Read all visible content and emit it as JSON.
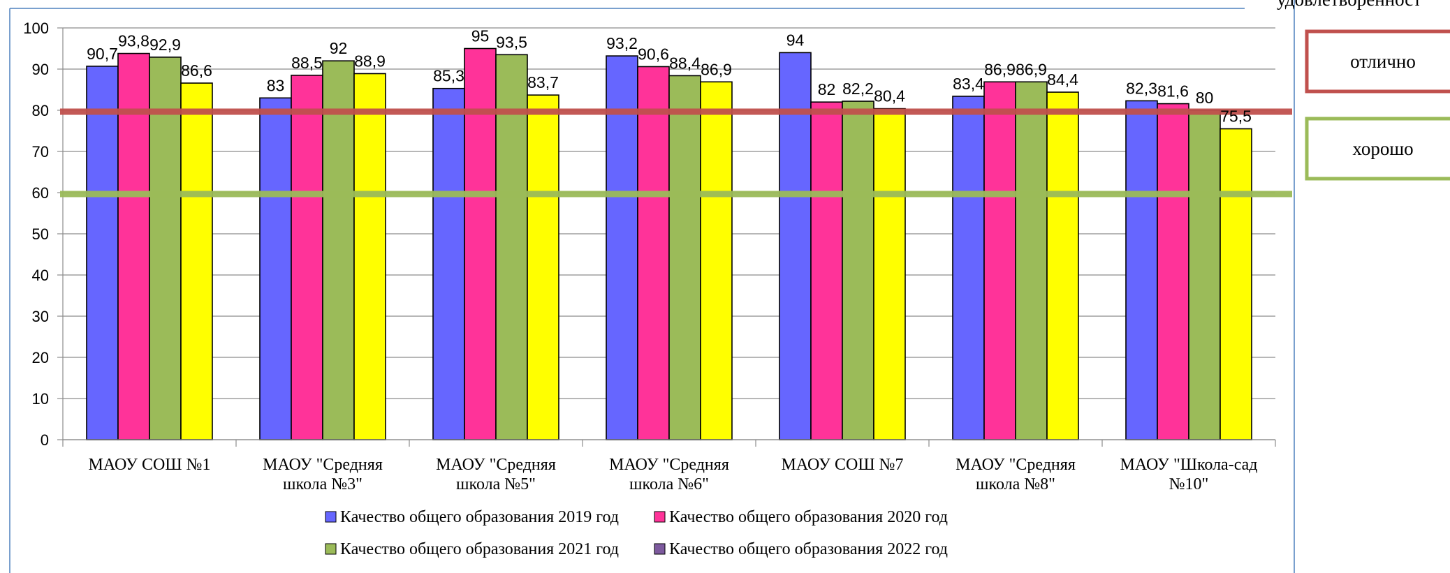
{
  "chart_data": {
    "type": "bar",
    "categories": [
      [
        "МАОУ СОШ №1"
      ],
      [
        "МАОУ \"Средняя",
        "школа №3\""
      ],
      [
        "МАОУ \"Средняя",
        "школа №5\""
      ],
      [
        "МАОУ \"Средняя",
        "школа №6\""
      ],
      [
        "МАОУ СОШ №7"
      ],
      [
        "МАОУ \"Средняя",
        "школа №8\""
      ],
      [
        "МАОУ \"Школа-сад",
        "№10\""
      ]
    ],
    "series": [
      {
        "name": "Качество общего образования 2019 год",
        "color": "#6666ff",
        "values": [
          90.7,
          83,
          85.3,
          93.2,
          94,
          83.4,
          82.3
        ],
        "labels": [
          "90,7",
          "83",
          "85,3",
          "93,2",
          "94",
          "83,4",
          "82,3"
        ]
      },
      {
        "name": "Качество общего образования 2020 год",
        "color": "#ff3399",
        "values": [
          93.8,
          88.5,
          95,
          90.6,
          82,
          86.9,
          81.6
        ],
        "labels": [
          "93,8",
          "88,5",
          "95",
          "90,6",
          "82",
          "86,9",
          "81,6"
        ]
      },
      {
        "name": "Качество общего образования 2021 год",
        "color": "#9bbb59",
        "values": [
          92.9,
          92,
          93.5,
          88.4,
          82.2,
          86.9,
          80
        ],
        "labels": [
          "92,9",
          "92",
          "93,5",
          "88,4",
          "82,2",
          "86,9",
          "80"
        ]
      },
      {
        "name": "Качество общего образования 2022 год",
        "color": "#ffff00",
        "legend_color": "#7d5a9e",
        "values": [
          86.6,
          88.9,
          83.7,
          86.9,
          80.4,
          84.4,
          75.5
        ],
        "labels": [
          "86,6",
          "88,9",
          "83,7",
          "86,9",
          "80,4",
          "84,4",
          "75,5"
        ]
      }
    ],
    "ylim": [
      0,
      100
    ],
    "y_ticks": [
      "0",
      "10",
      "20",
      "30",
      "40",
      "50",
      "60",
      "70",
      "80",
      "90",
      "100"
    ],
    "grid": true,
    "legend_position": "bottom",
    "reference_lines": [
      {
        "value": 80,
        "color": "#c0504d"
      },
      {
        "value": 60,
        "color": "#9bbb59"
      }
    ]
  },
  "side_panel": {
    "top_partial_text": "удовлетворенност",
    "boxes": [
      {
        "label": "отлично",
        "border_color": "#c0504d"
      },
      {
        "label": "хорошо",
        "border_color": "#9bbb59"
      }
    ]
  }
}
